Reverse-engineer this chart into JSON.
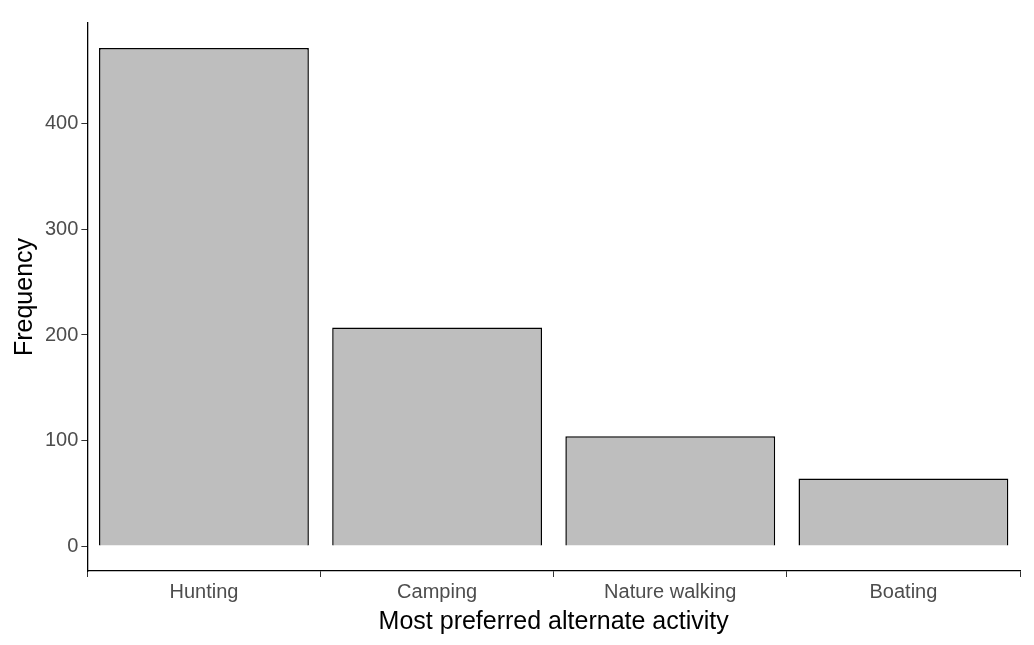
{
  "chart_data": {
    "type": "bar",
    "xlabel": "Most preferred alternate activity",
    "ylabel": "Frequency",
    "categories": [
      "Hunting",
      "Camping",
      "Nature walking",
      "Boating"
    ],
    "values": [
      472,
      207,
      104,
      64
    ],
    "color": "#bebebe",
    "ylim": [
      -23.6,
      495.6
    ],
    "yticks": [
      0,
      100,
      200,
      300,
      400
    ],
    "grid": false,
    "legend": false
  }
}
